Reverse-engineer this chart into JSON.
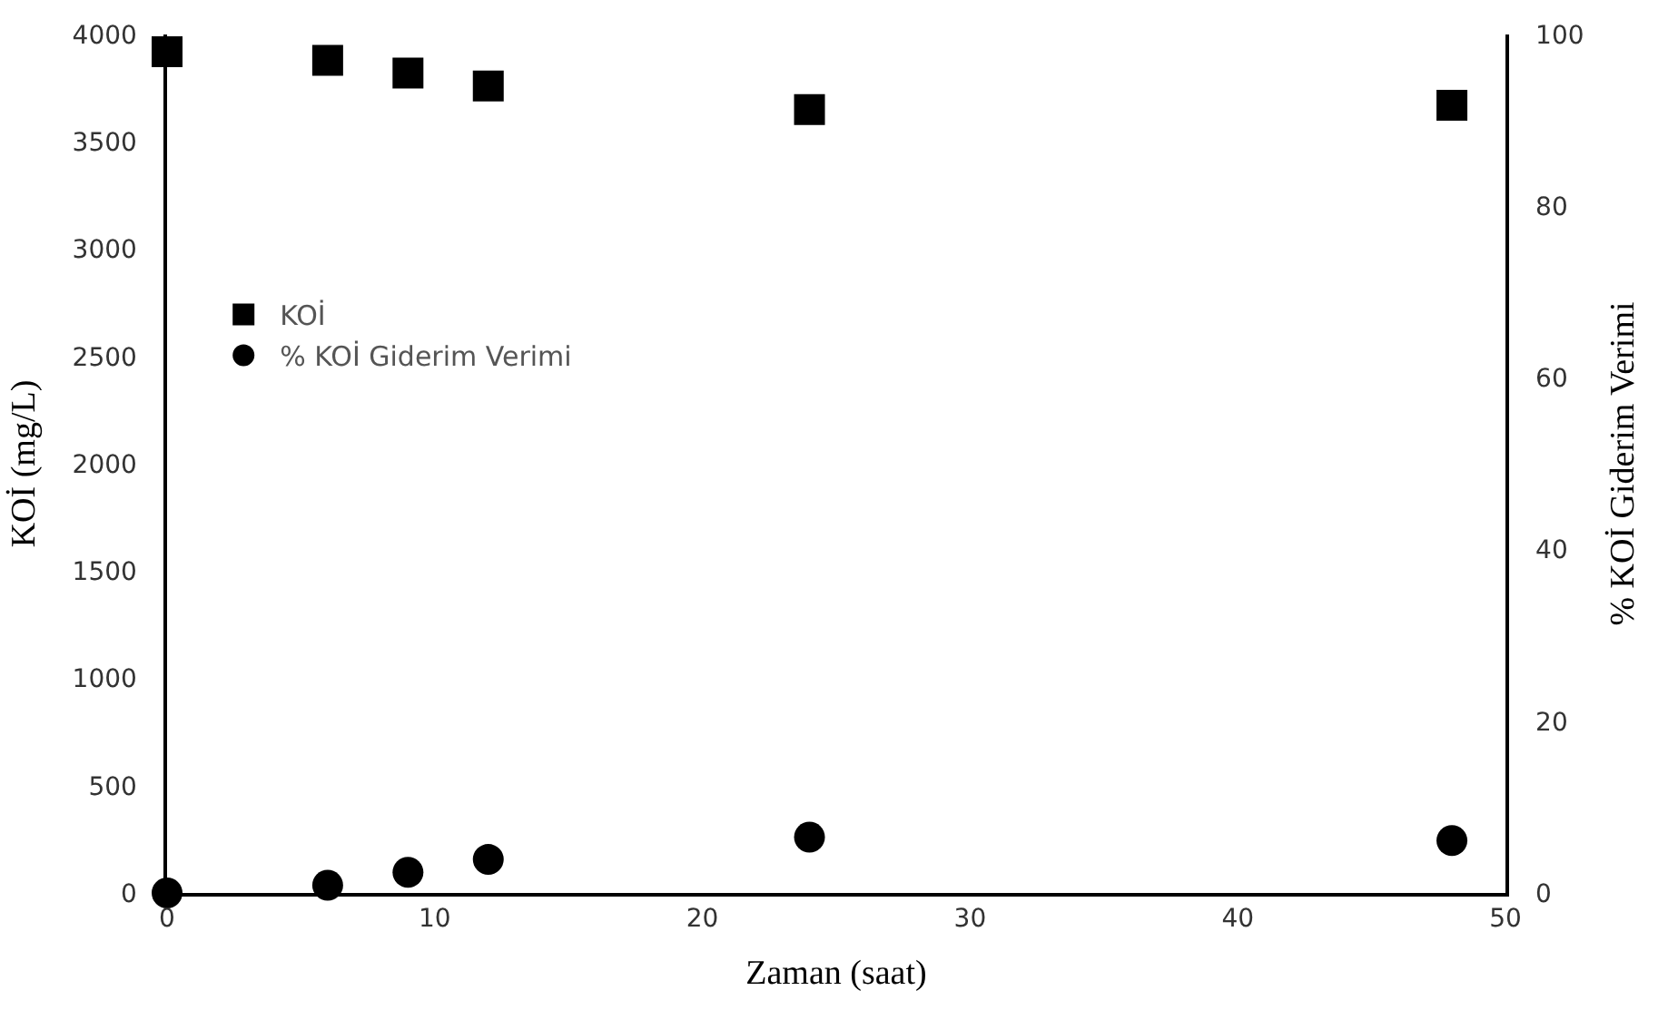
{
  "chart_data": {
    "type": "scatter",
    "xlabel": "Zaman (saat)",
    "ylabel": "KOİ (mg/L)",
    "y2label": "% KOİ Giderim Verimi",
    "x": [
      0,
      6,
      9,
      12,
      24,
      48
    ],
    "series": [
      {
        "name": "KOİ",
        "color": "#000000",
        "marker": "square",
        "values": [
          3920,
          3880,
          3820,
          3760,
          3650,
          3670
        ]
      },
      {
        "name": "% KOİ Giderim Verimi",
        "color": "#000000",
        "marker": "circle",
        "axis": "y2",
        "values": [
          0,
          0.9,
          2.4,
          3.9,
          6.5,
          6.1
        ]
      }
    ],
    "xlim": [
      0,
      50
    ],
    "xticks": [
      0,
      10,
      20,
      30,
      40,
      50
    ],
    "ylim": [
      0,
      4000
    ],
    "yticks": [
      0,
      500,
      1000,
      1500,
      2000,
      2500,
      3000,
      3500,
      4000
    ],
    "y2lim": [
      0,
      100
    ],
    "y2ticks": [
      0,
      20,
      40,
      60,
      80,
      100
    ],
    "legend": "left"
  }
}
